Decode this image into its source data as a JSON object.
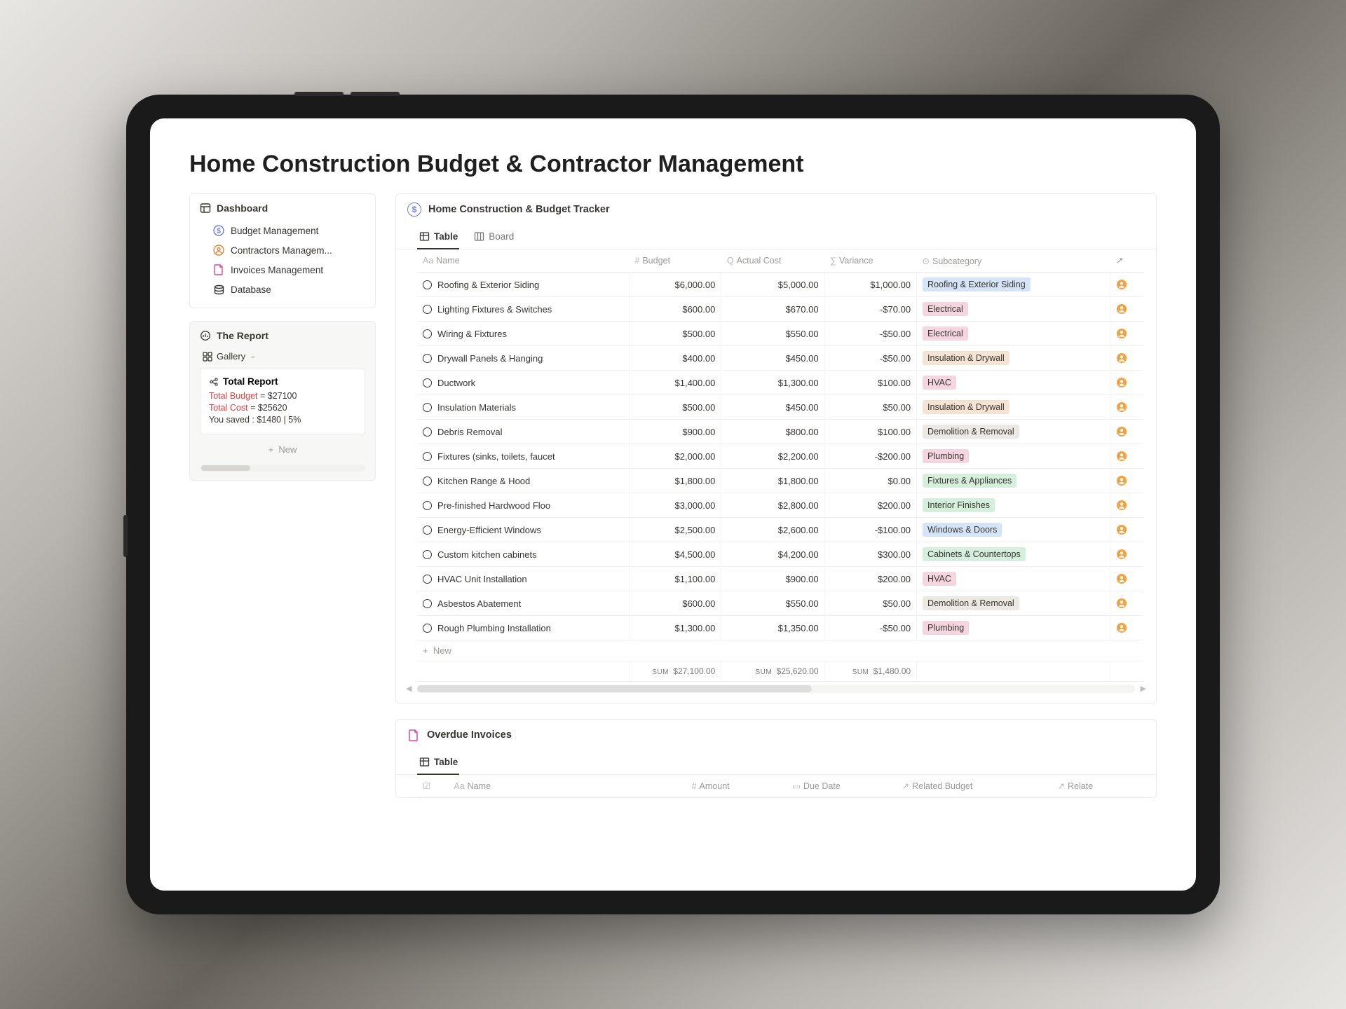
{
  "page": {
    "title": "Home Construction Budget & Contractor Management"
  },
  "sidebar": {
    "dashboard": {
      "title": "Dashboard",
      "items": [
        {
          "label": "Budget Management",
          "icon": "dollar-icon",
          "color": "#6b7fd7"
        },
        {
          "label": "Contractors Managem...",
          "icon": "person-icon",
          "color": "#e8823a"
        },
        {
          "label": "Invoices Management",
          "icon": "document-icon",
          "color": "#d946a4"
        },
        {
          "label": "Database",
          "icon": "stack-icon",
          "color": "#37352f"
        }
      ]
    },
    "report": {
      "title": "The Report",
      "view_label": "Gallery",
      "card": {
        "title": "Total Report",
        "budget_label": "Total Budget",
        "budget_value": "$27100",
        "cost_label": "Total Cost",
        "cost_value": "$25620",
        "saved_text": "You saved : $1480 | 5%"
      },
      "new_label": "New"
    }
  },
  "tracker": {
    "title": "Home Construction & Budget Tracker",
    "tabs": [
      {
        "label": "Table",
        "active": true
      },
      {
        "label": "Board",
        "active": false
      }
    ],
    "columns": {
      "name": "Name",
      "budget": "Budget",
      "actual": "Actual Cost",
      "variance": "Variance",
      "subcategory": "Subcategory"
    },
    "subcategory_colors": {
      "Roofing & Exterior Siding": "#d6e4f7",
      "Electrical": "#f5d6e0",
      "Insulation & Drywall": "#f5e3d3",
      "HVAC": "#f5d6e0",
      "Demolition & Removal": "#ece8e3",
      "Plumbing": "#f5d6e0",
      "Fixtures & Appliances": "#d6efdc",
      "Interior Finishes": "#d6efdc",
      "Windows & Doors": "#d6e4f7",
      "Cabinets & Countertops": "#d6efdc"
    },
    "rows": [
      {
        "name": "Roofing & Exterior Siding",
        "budget": "$6,000.00",
        "actual": "$5,000.00",
        "variance": "$1,000.00",
        "sub": "Roofing & Exterior Siding"
      },
      {
        "name": "Lighting Fixtures & Switches",
        "budget": "$600.00",
        "actual": "$670.00",
        "variance": "-$70.00",
        "sub": "Electrical"
      },
      {
        "name": "Wiring & Fixtures",
        "budget": "$500.00",
        "actual": "$550.00",
        "variance": "-$50.00",
        "sub": "Electrical"
      },
      {
        "name": "Drywall Panels & Hanging",
        "budget": "$400.00",
        "actual": "$450.00",
        "variance": "-$50.00",
        "sub": "Insulation & Drywall"
      },
      {
        "name": "Ductwork",
        "budget": "$1,400.00",
        "actual": "$1,300.00",
        "variance": "$100.00",
        "sub": "HVAC"
      },
      {
        "name": "Insulation Materials",
        "budget": "$500.00",
        "actual": "$450.00",
        "variance": "$50.00",
        "sub": "Insulation & Drywall"
      },
      {
        "name": "Debris Removal",
        "budget": "$900.00",
        "actual": "$800.00",
        "variance": "$100.00",
        "sub": "Demolition & Removal"
      },
      {
        "name": "Fixtures (sinks, toilets, faucet",
        "budget": "$2,000.00",
        "actual": "$2,200.00",
        "variance": "-$200.00",
        "sub": "Plumbing"
      },
      {
        "name": "Kitchen Range & Hood",
        "budget": "$1,800.00",
        "actual": "$1,800.00",
        "variance": "$0.00",
        "sub": "Fixtures & Appliances"
      },
      {
        "name": "Pre-finished Hardwood Floo",
        "budget": "$3,000.00",
        "actual": "$2,800.00",
        "variance": "$200.00",
        "sub": "Interior Finishes"
      },
      {
        "name": "Energy-Efficient Windows",
        "budget": "$2,500.00",
        "actual": "$2,600.00",
        "variance": "-$100.00",
        "sub": "Windows & Doors"
      },
      {
        "name": "Custom kitchen cabinets",
        "budget": "$4,500.00",
        "actual": "$4,200.00",
        "variance": "$300.00",
        "sub": "Cabinets & Countertops"
      },
      {
        "name": "HVAC Unit Installation",
        "budget": "$1,100.00",
        "actual": "$900.00",
        "variance": "$200.00",
        "sub": "HVAC"
      },
      {
        "name": "Asbestos Abatement",
        "budget": "$600.00",
        "actual": "$550.00",
        "variance": "$50.00",
        "sub": "Demolition & Removal"
      },
      {
        "name": "Rough Plumbing Installation",
        "budget": "$1,300.00",
        "actual": "$1,350.00",
        "variance": "-$50.00",
        "sub": "Plumbing"
      }
    ],
    "add_label": "New",
    "sums": {
      "budget": "$27,100.00",
      "actual": "$25,620.00",
      "variance": "$1,480.00",
      "prefix": "SUM"
    }
  },
  "invoices": {
    "title": "Overdue Invoices",
    "tab_label": "Table",
    "columns": {
      "name": "Name",
      "amount": "Amount",
      "due": "Due Date",
      "related_budget": "Related Budget",
      "related": "Relate"
    }
  }
}
